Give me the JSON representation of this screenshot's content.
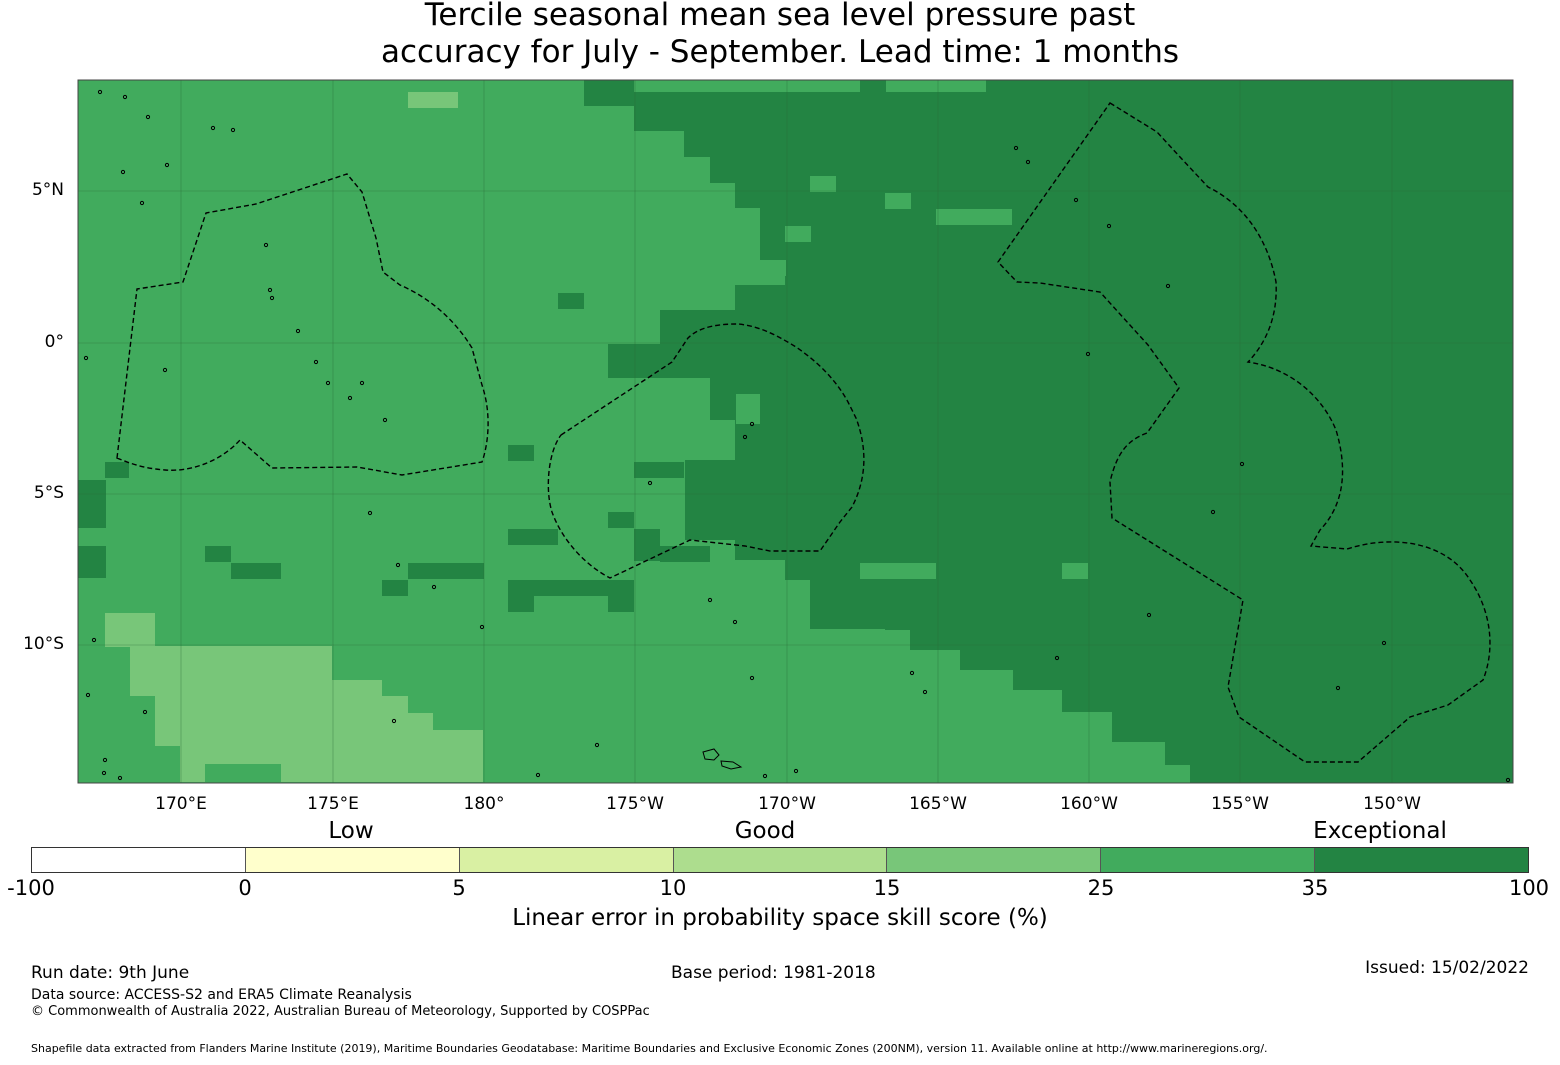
{
  "title": {
    "line1": "Tercile seasonal mean sea level pressure past",
    "line2": "accuracy for July - September. Lead time: 1 months"
  },
  "map": {
    "lat_labels": [
      "5°N",
      "0°",
      "5°S",
      "10°S"
    ],
    "lon_labels": [
      "170°E",
      "175°E",
      "180°",
      "175°W",
      "170°W",
      "165°W",
      "160°W",
      "155°W",
      "150°W"
    ],
    "background_color": "#41ab5d",
    "exceptional_color": "#238443",
    "lighter_color": "#78c679"
  },
  "colorbar": {
    "categories": [
      "Low",
      "Good",
      "Exceptional"
    ],
    "ticks": [
      "-100",
      "0",
      "5",
      "10",
      "15",
      "25",
      "35",
      "100"
    ],
    "colors": [
      "#ffffff",
      "#ffffcc",
      "#d9f0a3",
      "#addd8e",
      "#78c679",
      "#41ab5d",
      "#238443"
    ],
    "label": "Linear error in probability space skill score (%)"
  },
  "footer": {
    "run_date": "Run date: 9th June",
    "base_period": "Base period: 1981-2018",
    "issued": "Issued: 15/02/2022",
    "data_source": "Data source: ACCESS-S2 and ERA5 Climate Reanalysis",
    "copyright": "© Commonwealth of Australia 2022, Australian Bureau of Meteorology, Supported by COSPPac",
    "shapefile": "Shapefile data extracted from Flanders Marine Institute (2019), Maritime Boundaries Geodatabase: Maritime Boundaries and Exclusive Economic Zones (200NM), version 11. Available online at http://www.marineregions.org/."
  }
}
